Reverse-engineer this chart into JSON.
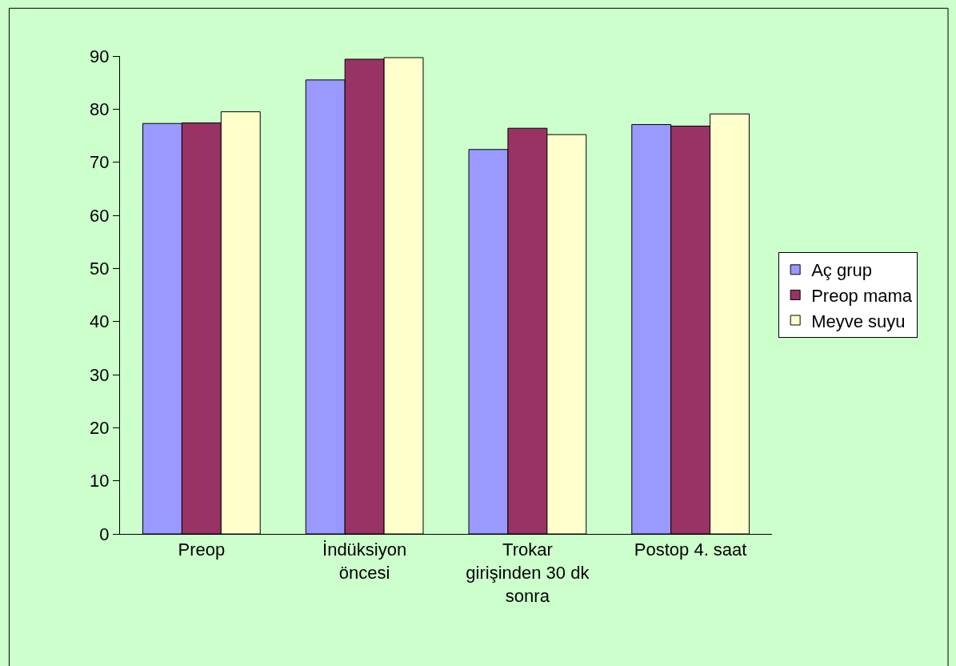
{
  "chart_data": {
    "type": "bar",
    "categories": [
      "Preop",
      "İndüksiyon öncesi",
      "Trokar girişinden 30 dk sonra",
      "Postop 4. saat"
    ],
    "series": [
      {
        "name": "Aç grup",
        "color": "#9999ff",
        "values": [
          77.3,
          85.5,
          72.4,
          77.1
        ]
      },
      {
        "name": "Preop mama",
        "color": "#993366",
        "values": [
          77.4,
          89.4,
          76.4,
          76.8
        ]
      },
      {
        "name": "Meyve suyu",
        "color": "#ffffcc",
        "values": [
          79.5,
          89.7,
          75.2,
          79.1
        ]
      }
    ],
    "ylim": [
      0,
      90
    ],
    "yticks": [
      0,
      10,
      20,
      30,
      40,
      50,
      60,
      70,
      80,
      90
    ],
    "grid": false,
    "legend": "right"
  }
}
